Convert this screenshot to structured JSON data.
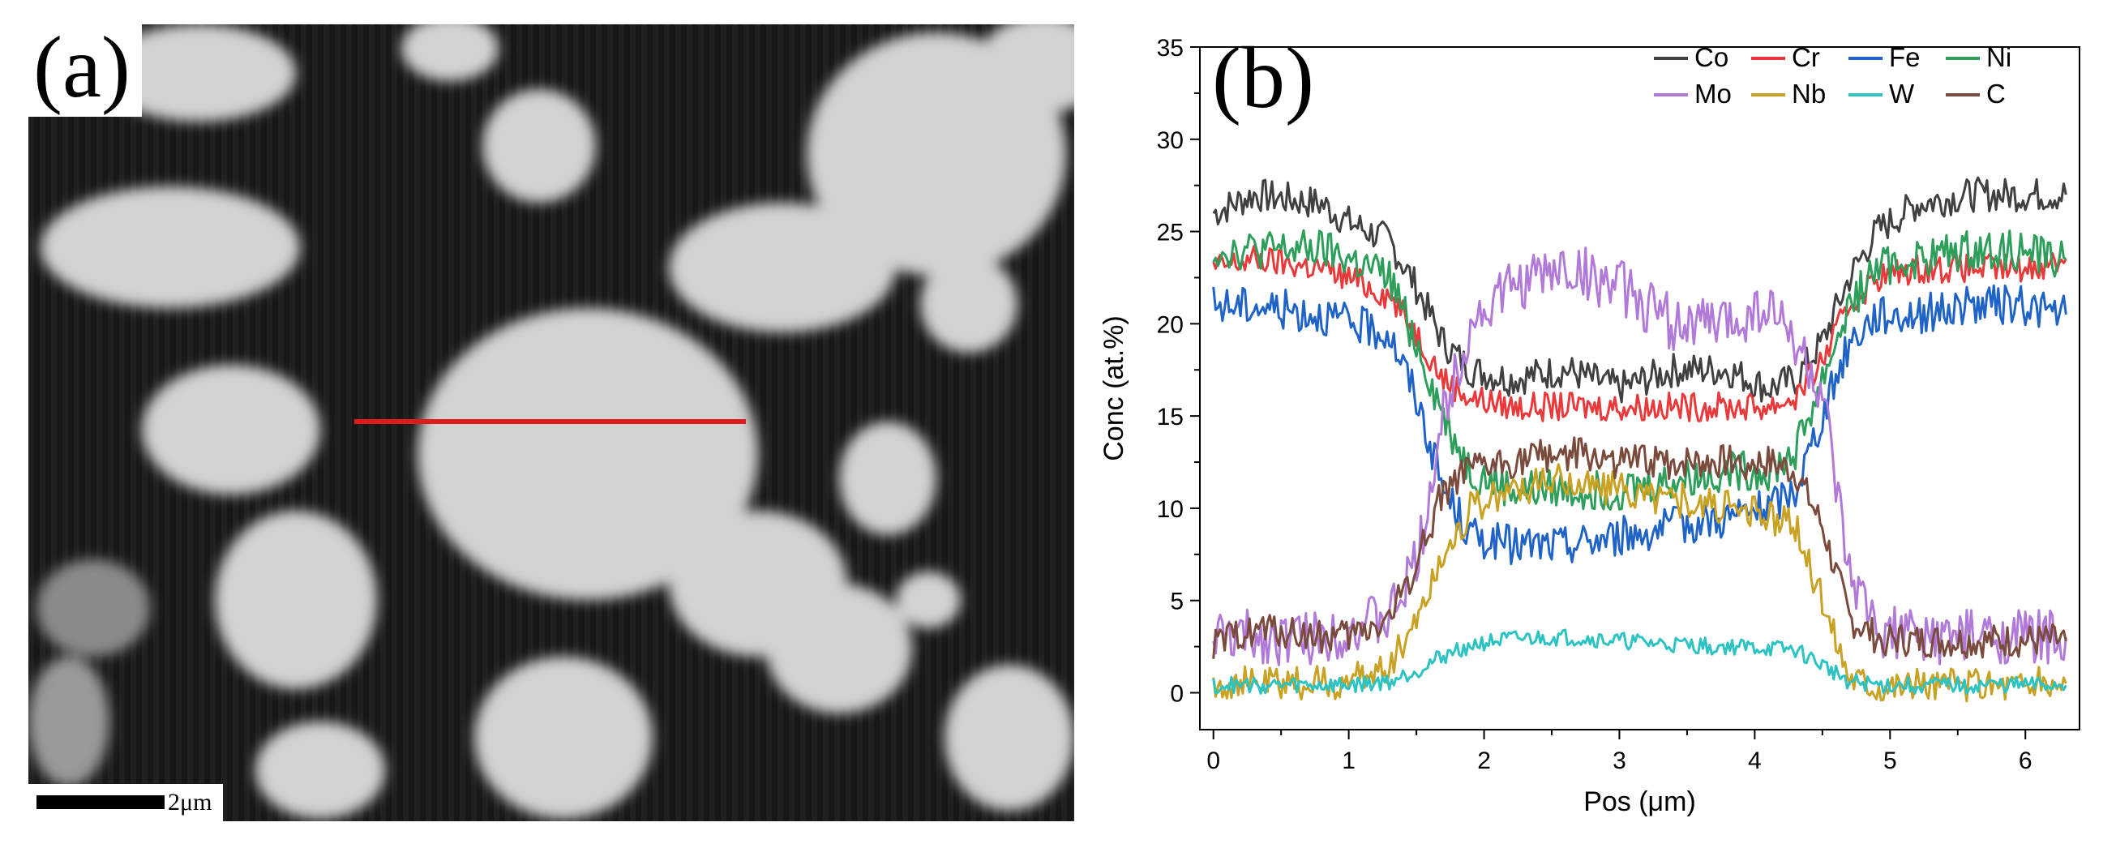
{
  "figure": {
    "panel_a": {
      "label": "(a)",
      "scale_bar": "2μm",
      "line_color": "#e31a1c"
    },
    "panel_b": {
      "label": "(b)"
    }
  },
  "chart_data": {
    "type": "line",
    "xlabel": "Pos (μm)",
    "ylabel": "Conc (at.%)",
    "xlim": [
      -0.1,
      6.4
    ],
    "ylim": [
      -2,
      35
    ],
    "xticks": [
      0,
      1,
      2,
      3,
      4,
      5,
      6
    ],
    "yticks": [
      0,
      5,
      10,
      15,
      20,
      25,
      30,
      35
    ],
    "legend_position": "top-right",
    "series": [
      {
        "name": "Co",
        "color": "#404040",
        "x": [
          0,
          0.3,
          0.8,
          1.0,
          1.3,
          1.5,
          1.7,
          1.9,
          2.2,
          2.6,
          3.0,
          3.4,
          3.8,
          4.1,
          4.3,
          4.5,
          4.7,
          4.9,
          5.2,
          5.6,
          6.0,
          6.3
        ],
        "y": [
          26,
          27,
          26.5,
          25.5,
          24.5,
          22,
          19,
          17.5,
          17,
          17.5,
          16.5,
          17.5,
          17.5,
          16.5,
          17,
          19,
          22.5,
          25,
          26.5,
          27,
          27,
          27
        ]
      },
      {
        "name": "Cr",
        "color": "#e8393b",
        "x": [
          0,
          0.3,
          0.8,
          1.0,
          1.3,
          1.5,
          1.7,
          1.9,
          2.2,
          2.6,
          3.0,
          3.4,
          3.8,
          4.1,
          4.3,
          4.5,
          4.7,
          4.9,
          5.2,
          5.6,
          6.0,
          6.3
        ],
        "y": [
          23,
          23.5,
          23,
          22.5,
          21.5,
          19.5,
          17,
          16,
          15.5,
          15.5,
          15.5,
          15.5,
          15.5,
          15.5,
          16,
          18,
          21,
          22.5,
          23,
          23,
          23,
          23.5
        ]
      },
      {
        "name": "Fe",
        "color": "#1f63c6",
        "x": [
          0,
          0.3,
          0.8,
          1.0,
          1.3,
          1.5,
          1.7,
          1.9,
          2.2,
          2.6,
          3.0,
          3.4,
          3.8,
          4.1,
          4.3,
          4.5,
          4.7,
          4.9,
          5.2,
          5.6,
          6.0,
          6.3
        ],
        "y": [
          21,
          21,
          20.5,
          20,
          19.5,
          16,
          11,
          8.5,
          8,
          8,
          8.5,
          9,
          9.5,
          10,
          11,
          15,
          19,
          20.5,
          20.5,
          21,
          21,
          20.5
        ]
      },
      {
        "name": "Ni",
        "color": "#2e9e5b",
        "x": [
          0,
          0.3,
          0.8,
          1.0,
          1.3,
          1.5,
          1.7,
          1.9,
          2.2,
          2.6,
          3.0,
          3.4,
          3.8,
          4.1,
          4.3,
          4.5,
          4.7,
          4.9,
          5.2,
          5.6,
          6.0,
          6.3
        ],
        "y": [
          24,
          24,
          24,
          23.5,
          22.5,
          19,
          15,
          12,
          11,
          11,
          11,
          11.5,
          12,
          12,
          13,
          17,
          21,
          23,
          23.5,
          24,
          24,
          23.5
        ]
      },
      {
        "name": "Mo",
        "color": "#b27ad8",
        "x": [
          0,
          0.3,
          0.8,
          1.0,
          1.3,
          1.5,
          1.7,
          1.9,
          2.2,
          2.6,
          3.0,
          3.4,
          3.8,
          4.1,
          4.3,
          4.5,
          4.7,
          4.9,
          5.2,
          5.6,
          6.0,
          6.3
        ],
        "y": [
          3,
          3,
          3,
          3.5,
          4,
          7,
          15,
          20,
          22,
          23,
          22,
          20,
          20,
          21,
          19,
          16,
          6,
          3.5,
          3,
          3,
          3,
          3
        ]
      },
      {
        "name": "Nb",
        "color": "#c9a224",
        "x": [
          0,
          0.3,
          0.8,
          1.0,
          1.3,
          1.5,
          1.7,
          1.9,
          2.2,
          2.6,
          3.0,
          3.4,
          3.8,
          4.1,
          4.3,
          4.5,
          4.7,
          4.9,
          5.2,
          5.6,
          6.0,
          6.3
        ],
        "y": [
          0.5,
          0.5,
          0.5,
          0.5,
          1.5,
          4,
          7.5,
          10,
          11,
          11.5,
          11,
          10.5,
          10,
          9.5,
          9,
          5,
          1,
          0.5,
          0.5,
          0.5,
          0.5,
          0.5
        ]
      },
      {
        "name": "W",
        "color": "#2ec3c3",
        "x": [
          0,
          0.3,
          0.8,
          1.0,
          1.3,
          1.5,
          1.7,
          1.9,
          2.2,
          2.6,
          3.0,
          3.4,
          3.8,
          4.1,
          4.3,
          4.5,
          4.7,
          4.9,
          5.2,
          5.6,
          6.0,
          6.3
        ],
        "y": [
          0.4,
          0.4,
          0.4,
          0.4,
          0.6,
          1.2,
          2,
          2.6,
          2.9,
          3,
          2.8,
          2.6,
          2.5,
          2.4,
          2.3,
          1.5,
          0.6,
          0.4,
          0.4,
          0.4,
          0.4,
          0.4
        ]
      },
      {
        "name": "C",
        "color": "#7a4b3c",
        "x": [
          0,
          0.3,
          0.8,
          1.0,
          1.3,
          1.5,
          1.7,
          1.9,
          2.2,
          2.6,
          3.0,
          3.4,
          3.8,
          4.1,
          4.3,
          4.5,
          4.7,
          4.9,
          5.2,
          5.6,
          6.0,
          6.3
        ],
        "y": [
          2.5,
          3.5,
          3,
          3,
          4,
          7,
          11,
          12,
          12.5,
          13,
          12.5,
          12.5,
          12.5,
          12.5,
          12,
          9,
          4,
          3,
          2.8,
          2.8,
          2.8,
          2.8
        ]
      }
    ]
  }
}
